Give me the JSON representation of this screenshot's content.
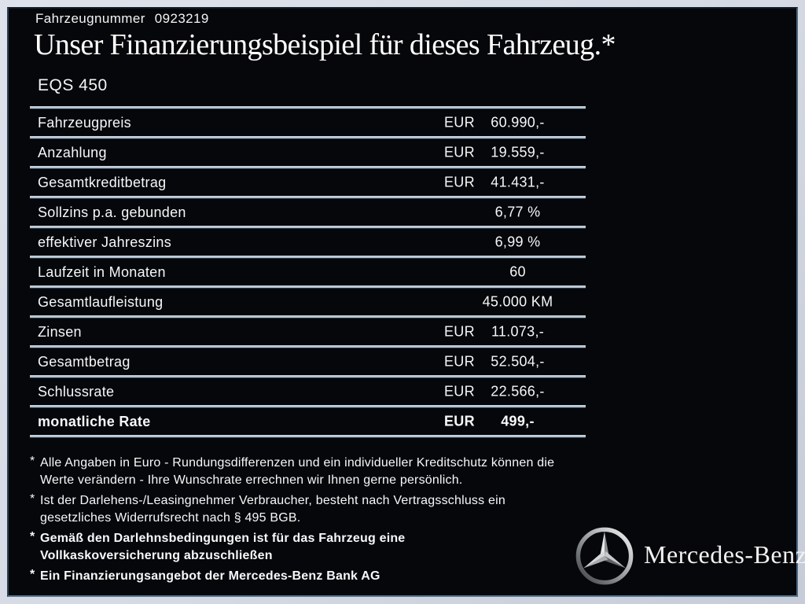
{
  "header": {
    "vehicle_number_label": "Fahrzeugnummer",
    "vehicle_number": "0923219",
    "title": "Unser Finanzierungsbeispiel für dieses Fahrzeug.*",
    "model": "EQS 450"
  },
  "table": {
    "rows": [
      {
        "label": "Fahrzeugpreis",
        "currency": "EUR",
        "value": "60.990,-",
        "bold": false
      },
      {
        "label": "Anzahlung",
        "currency": "EUR",
        "value": "19.559,-",
        "bold": false
      },
      {
        "label": "Gesamtkreditbetrag",
        "currency": "EUR",
        "value": "41.431,-",
        "bold": false
      },
      {
        "label": "Sollzins p.a. gebunden",
        "currency": "",
        "value": "6,77 %",
        "bold": false
      },
      {
        "label": "effektiver Jahreszins",
        "currency": "",
        "value": "6,99 %",
        "bold": false
      },
      {
        "label": "Laufzeit in Monaten",
        "currency": "",
        "value": "60",
        "bold": false
      },
      {
        "label": "Gesamtlaufleistung",
        "currency": "",
        "value": "45.000 KM",
        "bold": false
      },
      {
        "label": "Zinsen",
        "currency": "EUR",
        "value": "11.073,-",
        "bold": false
      },
      {
        "label": "Gesamtbetrag",
        "currency": "EUR",
        "value": "52.504,-",
        "bold": false
      },
      {
        "label": "Schlussrate",
        "currency": "EUR",
        "value": "22.566,-",
        "bold": false
      },
      {
        "label": "monatliche Rate",
        "currency": "EUR",
        "value": "499,-",
        "bold": true
      }
    ]
  },
  "footnotes": [
    {
      "marker": "*",
      "bold": false,
      "text": "Alle Angaben in Euro - Rundungsdifferenzen und ein individueller Kreditschutz können die\nWerte verändern - Ihre Wunschrate errechnen wir Ihnen gerne persönlich."
    },
    {
      "marker": "*",
      "bold": false,
      "text": "Ist der Darlehens-/Leasingnehmer Verbraucher, besteht nach Vertragsschluss ein\ngesetzliches Widerrufsrecht nach § 495 BGB."
    },
    {
      "marker": "*",
      "bold": true,
      "text": "Gemäß den Darlehnsbedingungen ist für das Fahrzeug eine\nVollkaskoversicherung abzuschließen"
    },
    {
      "marker": "*",
      "bold": true,
      "text": "Ein Finanzierungsangebot der Mercedes-Benz Bank AG"
    }
  ],
  "brand": {
    "logo": "mercedes-star-icon",
    "wordmark": "Mercedes-Benz"
  },
  "colors": {
    "background": "#06070a",
    "frame": "#d6dbe4",
    "separator": "#b5c2cd",
    "text": "#f5f7f9"
  }
}
